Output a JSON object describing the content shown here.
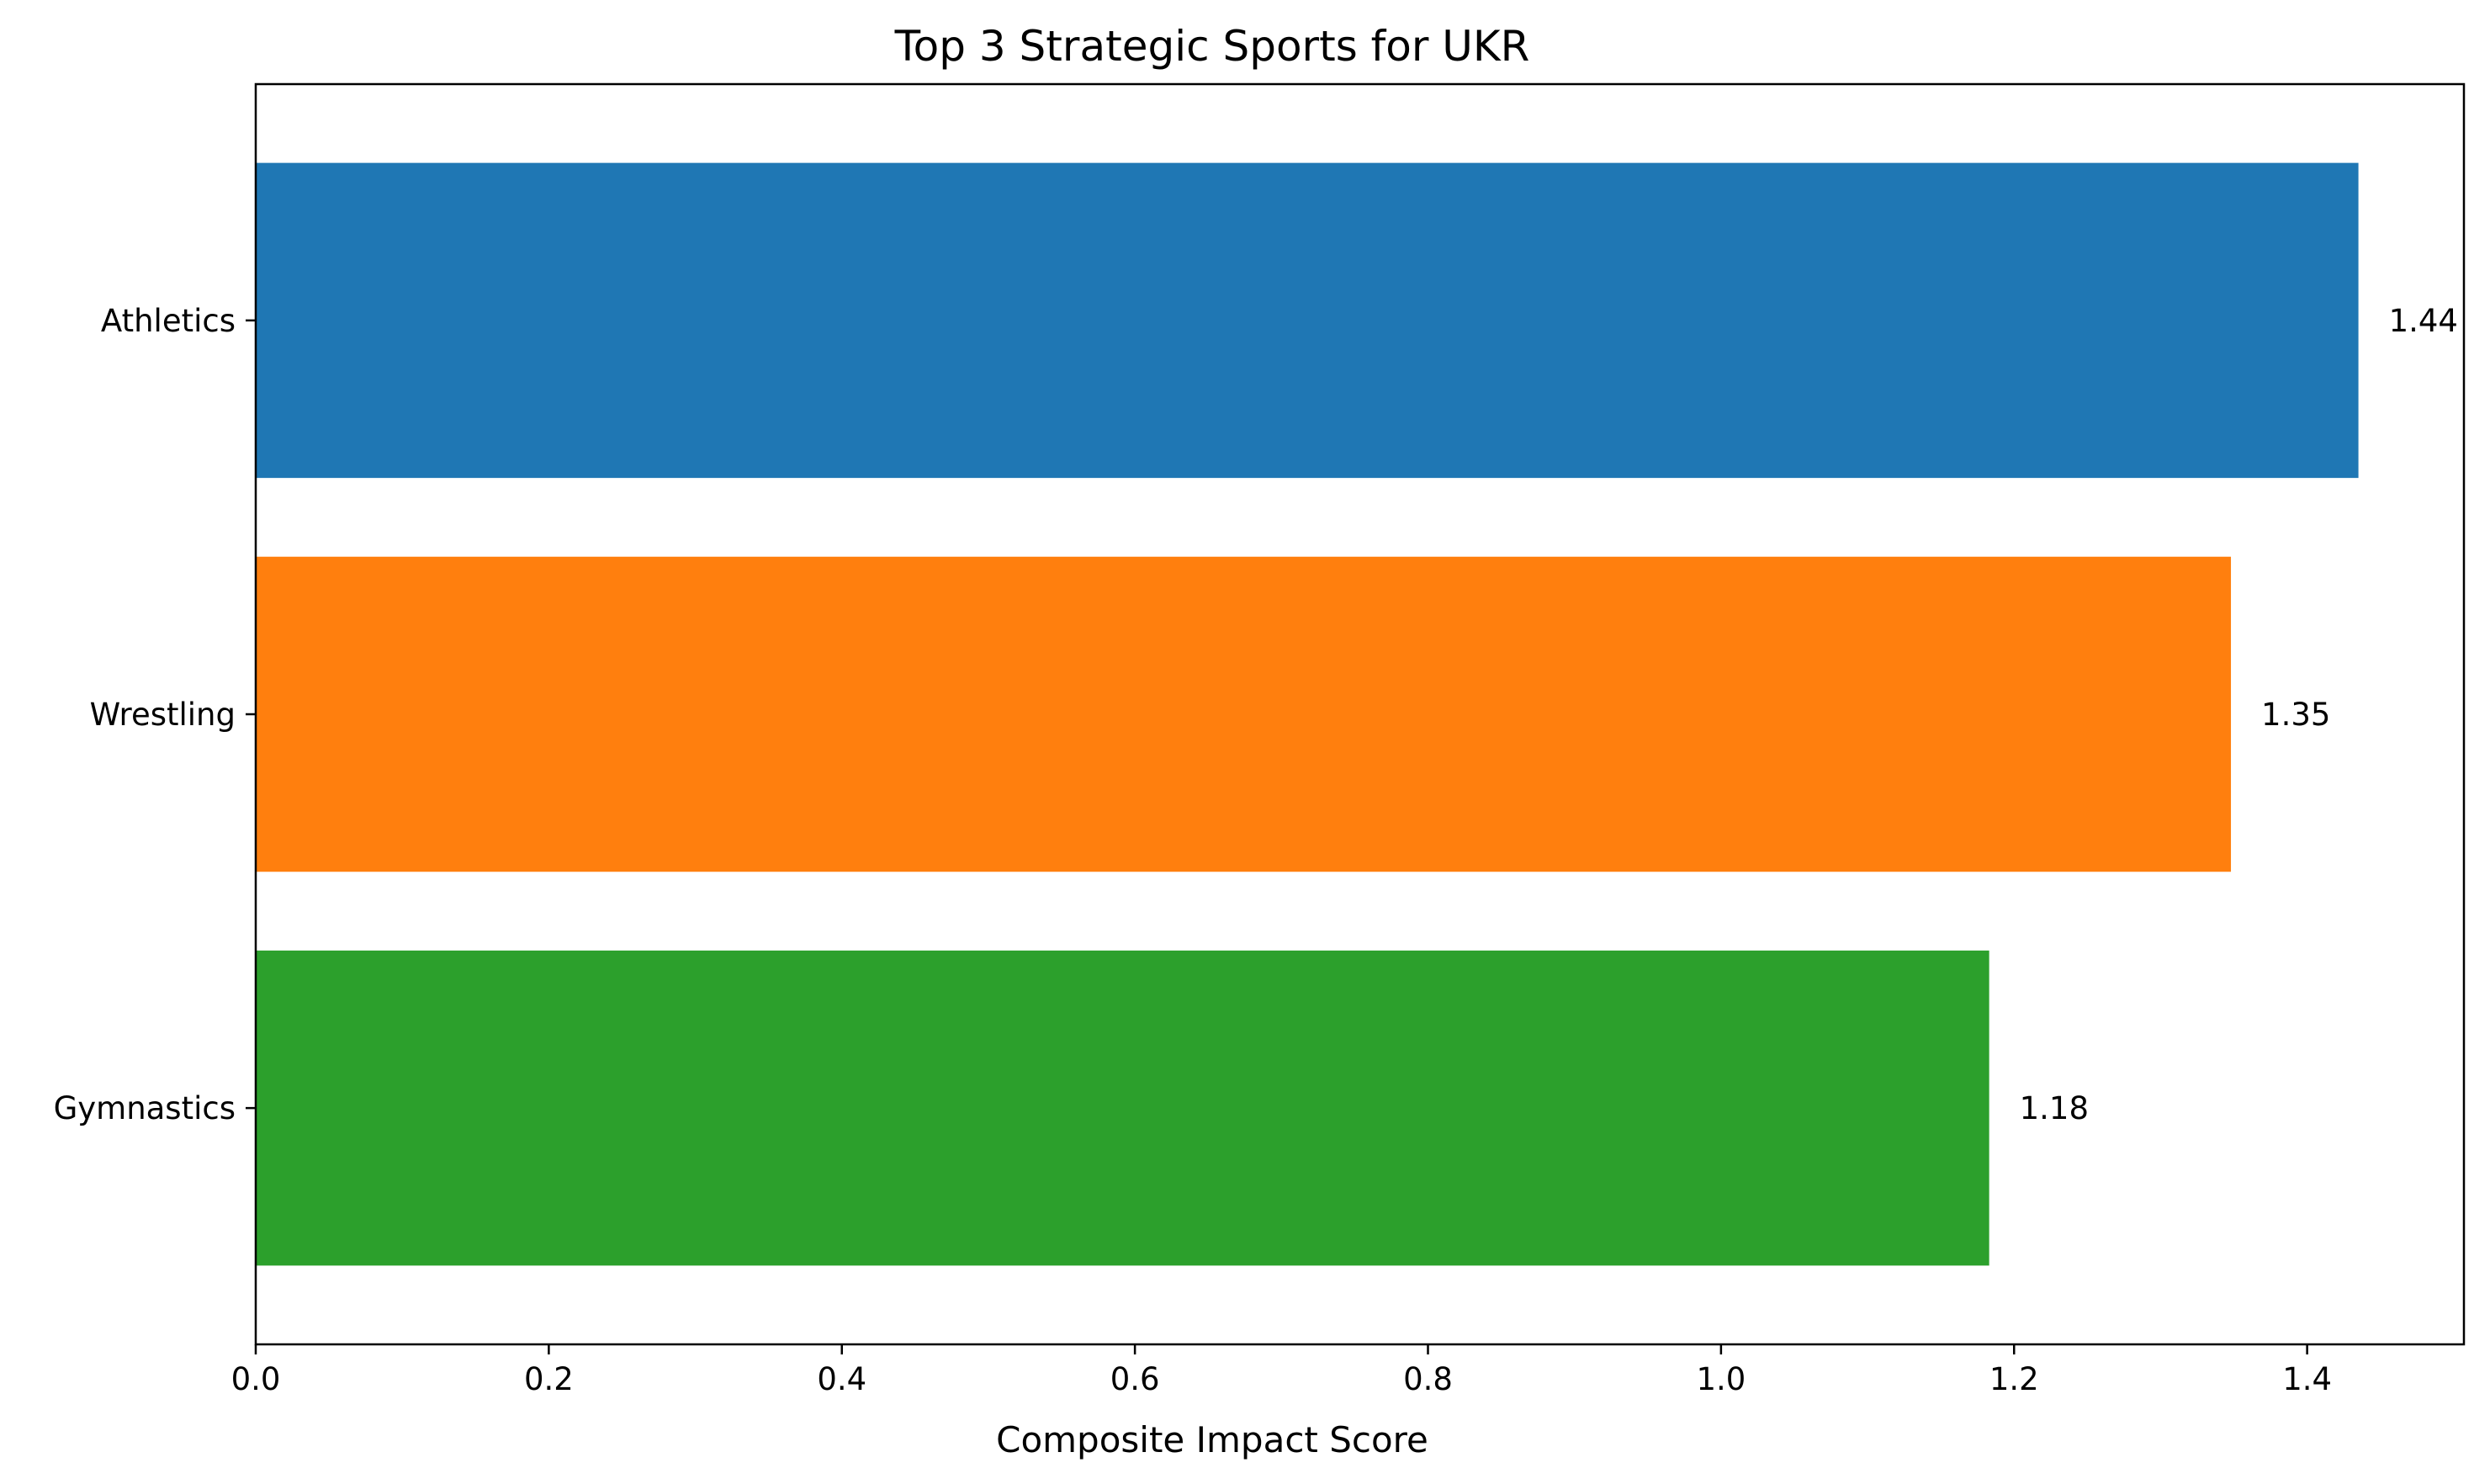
{
  "chart_data": {
    "type": "bar",
    "orientation": "horizontal",
    "title": "Top 3 Strategic Sports for UKR",
    "xlabel": "Composite Impact Score",
    "ylabel": "",
    "categories": [
      "Athletics",
      "Wrestling",
      "Gymnastics"
    ],
    "values": [
      1.435,
      1.348,
      1.183
    ],
    "value_labels": [
      "1.44",
      "1.35",
      "1.18"
    ],
    "colors": [
      "#1f77b4",
      "#ff7f0e",
      "#2ca02c"
    ],
    "xlim": [
      0,
      1.507
    ],
    "xticks": [
      0.0,
      0.2,
      0.4,
      0.6,
      0.8,
      1.0,
      1.2,
      1.4
    ],
    "xtick_labels": [
      "0.0",
      "0.2",
      "0.4",
      "0.6",
      "0.8",
      "1.0",
      "1.2",
      "1.4"
    ],
    "grid": false,
    "legend": "none"
  }
}
